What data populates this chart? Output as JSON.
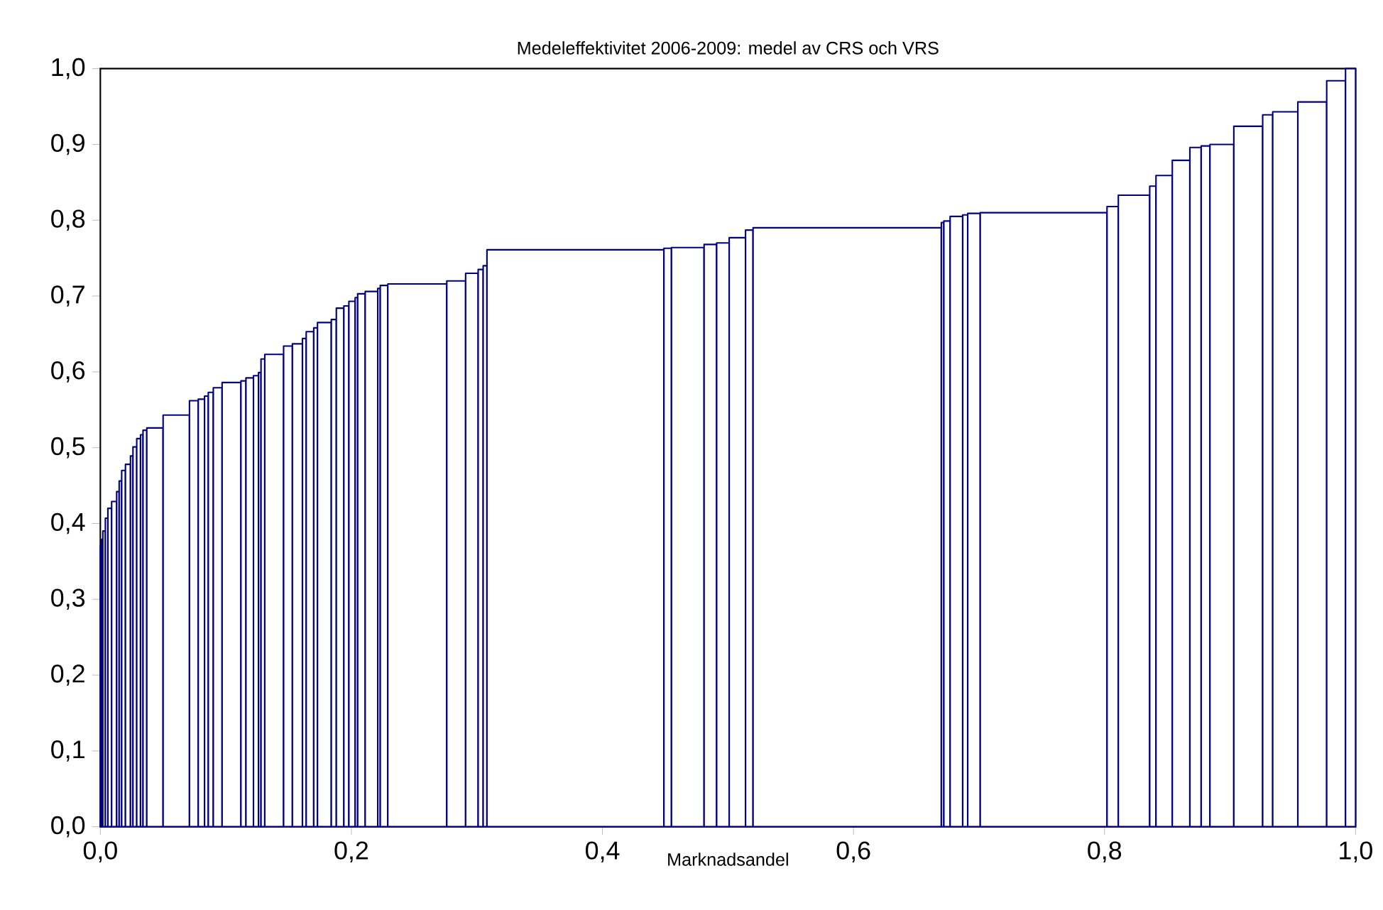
{
  "chart_data": {
    "type": "histogram",
    "title": "Medeleffektivitet 2006-2009: medel av CRS och VRS",
    "xlabel": "Marknadsandel",
    "bins": [
      0,
      0.001,
      0.002,
      0.004,
      0.006,
      0.009,
      0.013,
      0.015,
      0.017,
      0.02,
      0.024,
      0.026,
      0.029,
      0.032,
      0.034,
      0.037,
      0.05,
      0.071,
      0.078,
      0.083,
      0.086,
      0.09,
      0.097,
      0.112,
      0.116,
      0.122,
      0.126,
      0.128,
      0.131,
      0.146,
      0.153,
      0.161,
      0.164,
      0.17,
      0.173,
      0.184,
      0.188,
      0.194,
      0.198,
      0.203,
      0.205,
      0.211,
      0.221,
      0.223,
      0.229,
      0.276,
      0.291,
      0.301,
      0.305,
      0.308,
      0.449,
      0.455,
      0.481,
      0.491,
      0.501,
      0.514,
      0.52,
      0.67,
      0.672,
      0.677,
      0.687,
      0.691,
      0.701,
      0.802,
      0.811,
      0.836,
      0.841,
      0.854,
      0.868,
      0.877,
      0.884,
      0.903,
      0.926,
      0.934,
      0.954,
      0.977,
      0.992,
      1.0
    ],
    "values": [
      0.37,
      0.379,
      0.39,
      0.407,
      0.42,
      0.429,
      0.442,
      0.456,
      0.47,
      0.478,
      0.489,
      0.501,
      0.512,
      0.517,
      0.523,
      0.526,
      0.543,
      0.562,
      0.564,
      0.568,
      0.573,
      0.579,
      0.586,
      0.588,
      0.592,
      0.595,
      0.599,
      0.617,
      0.623,
      0.634,
      0.637,
      0.644,
      0.653,
      0.658,
      0.665,
      0.669,
      0.684,
      0.687,
      0.693,
      0.698,
      0.703,
      0.706,
      0.71,
      0.714,
      0.716,
      0.72,
      0.73,
      0.735,
      0.74,
      0.761,
      0.763,
      0.764,
      0.768,
      0.77,
      0.777,
      0.787,
      0.79,
      0.797,
      0.799,
      0.805,
      0.807,
      0.809,
      0.81,
      0.818,
      0.833,
      0.845,
      0.859,
      0.879,
      0.896,
      0.898,
      0.9,
      0.924,
      0.939,
      0.943,
      0.956,
      0.984,
      1.0
    ],
    "color": "#000080",
    "xlim": [
      0,
      1
    ],
    "xticks": [
      {
        "value": 0,
        "label": "0,0"
      },
      {
        "value": 0.2,
        "label": "0,2"
      },
      {
        "value": 0.4,
        "label": "0,4"
      },
      {
        "value": 0.6,
        "label": "0,6"
      },
      {
        "value": 0.8,
        "label": "0,8"
      },
      {
        "value": 1,
        "label": "1,0"
      }
    ],
    "ylim": [
      0,
      1
    ],
    "yticks": [
      {
        "value": 0,
        "label": "0,0"
      },
      {
        "value": 0.1,
        "label": "0,1"
      },
      {
        "value": 0.2,
        "label": "0,2"
      },
      {
        "value": 0.3,
        "label": "0,3"
      },
      {
        "value": 0.4,
        "label": "0,4"
      },
      {
        "value": 0.5,
        "label": "0,5"
      },
      {
        "value": 0.6,
        "label": "0,6"
      },
      {
        "value": 0.7,
        "label": "0,7"
      },
      {
        "value": 0.8,
        "label": "0,8"
      },
      {
        "value": 0.9,
        "label": "0,9"
      },
      {
        "value": 1,
        "label": "1,0"
      }
    ]
  }
}
